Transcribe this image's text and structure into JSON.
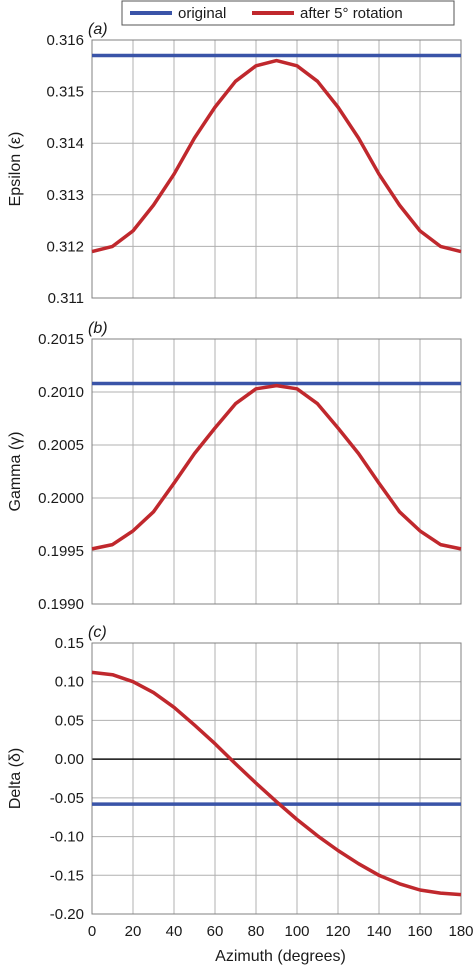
{
  "legend": {
    "placement": "top",
    "items": [
      {
        "label": "original",
        "color": "#3a54a8"
      },
      {
        "label": "after 5° rotation",
        "color": "#c0282d"
      }
    ]
  },
  "chart_data": [
    {
      "type": "line",
      "panel_label": "(a)",
      "ylabel": "Epsilon (ε)",
      "xlabel": "",
      "xlim": [
        0,
        180
      ],
      "ylim": [
        0.311,
        0.316
      ],
      "xticks": [
        "0",
        "20",
        "40",
        "60",
        "80",
        "100",
        "120",
        "140",
        "160",
        "180"
      ],
      "yticks": [
        "0.311",
        "0.312",
        "0.313",
        "0.314",
        "0.315",
        "0.316"
      ],
      "grid": true,
      "x": [
        0,
        10,
        20,
        30,
        40,
        50,
        60,
        70,
        80,
        90,
        100,
        110,
        120,
        130,
        140,
        150,
        160,
        170,
        180
      ],
      "series": [
        {
          "name": "original",
          "values": [
            0.3157,
            0.3157,
            0.3157,
            0.3157,
            0.3157,
            0.3157,
            0.3157,
            0.3157,
            0.3157,
            0.3157,
            0.3157,
            0.3157,
            0.3157,
            0.3157,
            0.3157,
            0.3157,
            0.3157,
            0.3157,
            0.3157
          ]
        },
        {
          "name": "after 5° rotation",
          "values": [
            0.3119,
            0.312,
            0.3123,
            0.3128,
            0.3134,
            0.3141,
            0.3147,
            0.3152,
            0.3155,
            0.3156,
            0.3155,
            0.3152,
            0.3147,
            0.3141,
            0.3134,
            0.3128,
            0.3123,
            0.312,
            0.3119
          ]
        }
      ]
    },
    {
      "type": "line",
      "panel_label": "(b)",
      "ylabel": "Gamma (γ)",
      "xlabel": "",
      "xlim": [
        0,
        180
      ],
      "ylim": [
        0.199,
        0.2015
      ],
      "xticks": [
        "0",
        "20",
        "40",
        "60",
        "80",
        "100",
        "120",
        "140",
        "160",
        "180"
      ],
      "yticks": [
        "0.1990",
        "0.1995",
        "0.2000",
        "0.2005",
        "0.2010",
        "0.2015"
      ],
      "grid": true,
      "x": [
        0,
        10,
        20,
        30,
        40,
        50,
        60,
        70,
        80,
        90,
        100,
        110,
        120,
        130,
        140,
        150,
        160,
        170,
        180
      ],
      "series": [
        {
          "name": "original",
          "values": [
            0.20108,
            0.20108,
            0.20108,
            0.20108,
            0.20108,
            0.20108,
            0.20108,
            0.20108,
            0.20108,
            0.20108,
            0.20108,
            0.20108,
            0.20108,
            0.20108,
            0.20108,
            0.20108,
            0.20108,
            0.20108,
            0.20108
          ]
        },
        {
          "name": "after 5° rotation",
          "values": [
            0.19952,
            0.19956,
            0.19969,
            0.19987,
            0.20014,
            0.20042,
            0.20066,
            0.20089,
            0.20103,
            0.20106,
            0.20103,
            0.20089,
            0.20066,
            0.20042,
            0.20014,
            0.19987,
            0.19969,
            0.19956,
            0.19952
          ]
        }
      ]
    },
    {
      "type": "line",
      "panel_label": "(c)",
      "ylabel": "Delta (δ)",
      "xlabel": "Azimuth (degrees)",
      "xlim": [
        0,
        180
      ],
      "ylim": [
        -0.2,
        0.15
      ],
      "xticks": [
        "0",
        "20",
        "40",
        "60",
        "80",
        "100",
        "120",
        "140",
        "160",
        "180"
      ],
      "yticks": [
        "-0.20",
        "-0.15",
        "-0.10",
        "-0.05",
        "0.00",
        "0.05",
        "0.10",
        "0.15"
      ],
      "grid": true,
      "zero_line": 0,
      "x": [
        0,
        10,
        20,
        30,
        40,
        50,
        60,
        70,
        80,
        90,
        100,
        110,
        120,
        130,
        140,
        150,
        160,
        170,
        180
      ],
      "series": [
        {
          "name": "original",
          "values": [
            -0.058,
            -0.058,
            -0.058,
            -0.058,
            -0.058,
            -0.058,
            -0.058,
            -0.058,
            -0.058,
            -0.058,
            -0.058,
            -0.058,
            -0.058,
            -0.058,
            -0.058,
            -0.058,
            -0.058,
            -0.058,
            -0.058
          ]
        },
        {
          "name": "after 5° rotation",
          "values": [
            0.112,
            0.109,
            0.1,
            0.086,
            0.067,
            0.044,
            0.02,
            -0.006,
            -0.031,
            -0.055,
            -0.078,
            -0.099,
            -0.118,
            -0.135,
            -0.15,
            -0.161,
            -0.169,
            -0.173,
            -0.175
          ]
        }
      ]
    }
  ]
}
